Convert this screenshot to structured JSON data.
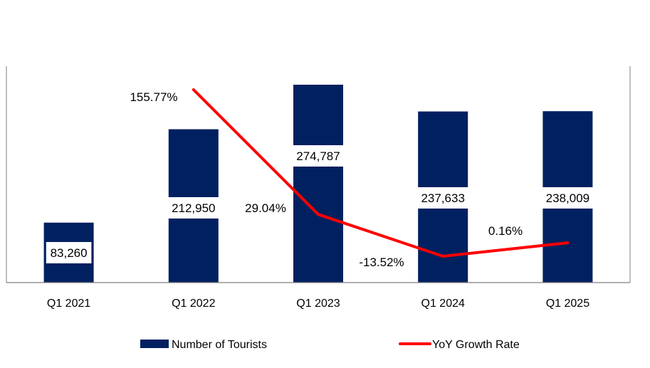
{
  "chart_data": {
    "type": "bar",
    "categories": [
      "Q1 2021",
      "Q1 2022",
      "Q1 2023",
      "Q1 2024",
      "Q1 2025"
    ],
    "series": [
      {
        "name": "Number of Tourists",
        "type": "bar",
        "values": [
          83260,
          212950,
          274787,
          237633,
          238009
        ],
        "labels": [
          "83,260",
          "212,950",
          "274,787",
          "237,633",
          "238,009"
        ],
        "color": "#002060"
      },
      {
        "name": "YoY Growth Rate",
        "type": "line",
        "values": [
          null,
          155.77,
          29.04,
          -13.52,
          0.16
        ],
        "labels": [
          "",
          "155.77%",
          "29.04%",
          "-13.52%",
          "0.16%"
        ],
        "color": "#ff0000"
      }
    ],
    "ylim": [
      0,
      300000
    ],
    "y2lim": [
      -25,
      175
    ],
    "grid": false,
    "legend": "bottom"
  }
}
